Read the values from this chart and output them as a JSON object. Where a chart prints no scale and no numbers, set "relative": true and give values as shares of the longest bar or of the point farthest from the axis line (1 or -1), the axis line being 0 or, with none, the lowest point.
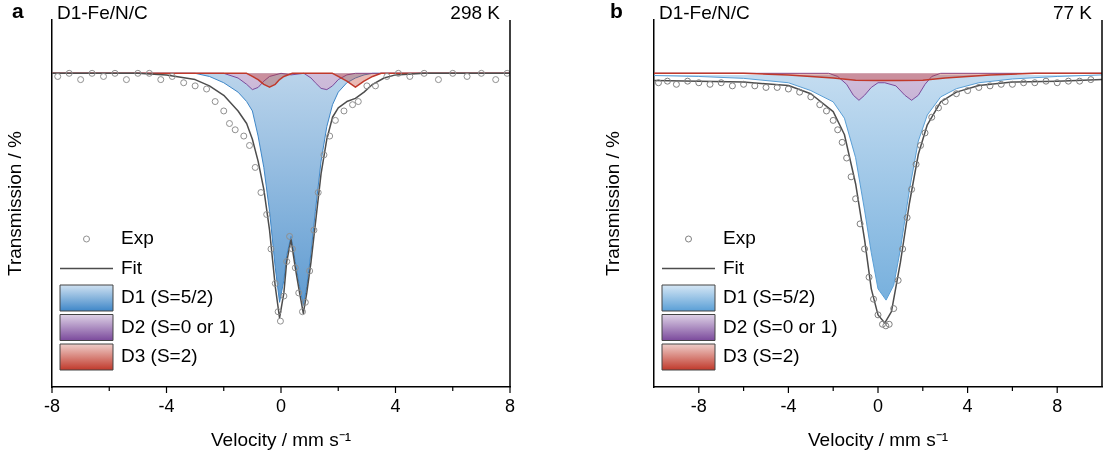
{
  "chart_data": [
    {
      "type": "line",
      "relative": true,
      "title": "D1-Fe/N/C",
      "subtitle": "298 K",
      "annotations": [
        "a"
      ],
      "xlabel": "Velocity / mm s⁻¹",
      "ylabel": "Transmission / %",
      "xlim": [
        -8,
        8
      ],
      "xticks": [
        -8,
        {
          "value": -6,
          "label": null
        },
        -4,
        {
          "value": -2,
          "label": null
        },
        0,
        {
          "value": 2,
          "label": null
        },
        4,
        {
          "value": 6,
          "label": null
        },
        8
      ],
      "legend": "bottom left",
      "series": [
        {
          "name": "Exp",
          "type": "scatter",
          "marker": "circle",
          "color": "#909090",
          "x": [
            -7.8,
            -7.4,
            -7.0,
            -6.6,
            -6.2,
            -5.8,
            -5.4,
            -5.0,
            -4.6,
            -4.2,
            -3.8,
            -3.4,
            -3.0,
            -2.6,
            -2.3,
            -2.0,
            -1.8,
            -1.6,
            -1.3,
            -1.1,
            -0.9,
            -0.7,
            -0.5,
            -0.35,
            -0.2,
            -0.1,
            -0.02,
            0.1,
            0.2,
            0.3,
            0.4,
            0.5,
            0.62,
            0.75,
            0.85,
            1.0,
            1.15,
            1.3,
            1.5,
            1.7,
            1.9,
            2.2,
            2.5,
            2.7,
            3.0,
            3.3,
            3.7,
            4.1,
            4.5,
            5.0,
            5.5,
            6.0,
            6.5,
            7.0,
            7.5,
            7.9
          ],
          "values": [
            0.99,
            1.0,
            0.98,
            1.0,
            0.99,
            1.0,
            0.98,
            1.0,
            1.0,
            0.98,
            0.99,
            0.97,
            0.96,
            0.95,
            0.91,
            0.88,
            0.84,
            0.82,
            0.8,
            0.77,
            0.7,
            0.62,
            0.55,
            0.44,
            0.33,
            0.24,
            0.21,
            0.29,
            0.4,
            0.48,
            0.44,
            0.38,
            0.3,
            0.24,
            0.27,
            0.37,
            0.5,
            0.62,
            0.74,
            0.8,
            0.85,
            0.88,
            0.9,
            0.91,
            0.96,
            0.96,
            0.99,
            1.0,
            0.99,
            1.0,
            0.98,
            1.0,
            0.99,
            1.0,
            0.98,
            1.0
          ]
        },
        {
          "name": "Fit",
          "type": "line",
          "color": "#4d4d4d",
          "x": [
            -8,
            -5,
            -4,
            -3,
            -2.5,
            -2,
            -1.5,
            -1.2,
            -1,
            -0.8,
            -0.6,
            -0.4,
            -0.2,
            -0.05,
            0.1,
            0.2,
            0.35,
            0.5,
            0.65,
            0.78,
            0.9,
            1.05,
            1.2,
            1.4,
            1.6,
            1.8,
            2,
            2.3,
            2.6,
            2.9,
            3.2,
            3.6,
            4,
            5,
            8
          ],
          "values": [
            1,
            1,
            0.995,
            0.98,
            0.96,
            0.93,
            0.88,
            0.84,
            0.79,
            0.72,
            0.63,
            0.5,
            0.32,
            0.22,
            0.3,
            0.4,
            0.47,
            0.38,
            0.3,
            0.235,
            0.3,
            0.4,
            0.52,
            0.68,
            0.79,
            0.86,
            0.89,
            0.91,
            0.92,
            0.94,
            0.965,
            0.985,
            0.995,
            1,
            1
          ]
        },
        {
          "name": "D1 (S=5/2)",
          "type": "area",
          "color": "#3f87c8",
          "x": [
            -8,
            -5,
            -4,
            -3,
            -2.5,
            -2,
            -1.5,
            -1.2,
            -1,
            -0.8,
            -0.6,
            -0.4,
            -0.2,
            -0.05,
            0.1,
            0.2,
            0.35,
            0.5,
            0.65,
            0.78,
            0.9,
            1.05,
            1.2,
            1.4,
            1.6,
            1.8,
            2,
            2.3,
            2.6,
            2.9,
            3.2,
            3.6,
            4,
            5,
            8
          ],
          "values": [
            1,
            1,
            1,
            1,
            0.99,
            0.97,
            0.94,
            0.91,
            0.88,
            0.8,
            0.7,
            0.56,
            0.38,
            0.27,
            0.34,
            0.42,
            0.48,
            0.4,
            0.32,
            0.26,
            0.32,
            0.43,
            0.56,
            0.72,
            0.83,
            0.9,
            0.94,
            0.97,
            0.985,
            0.995,
            1,
            1,
            1,
            1,
            1
          ]
        },
        {
          "name": "D2 (S=0 or 1)",
          "type": "area",
          "color": "#7b4a9c",
          "x": [
            -8,
            -2,
            -1.5,
            -1.2,
            -1,
            -0.8,
            -0.6,
            -0.4,
            0,
            0.35,
            0.8,
            1.05,
            1.2,
            1.4,
            1.6,
            1.8,
            2,
            2.3,
            2.6,
            8
          ],
          "values": [
            1,
            1,
            0.985,
            0.965,
            0.948,
            0.955,
            0.975,
            0.99,
            1,
            0.995,
            1,
            0.985,
            0.97,
            0.952,
            0.948,
            0.96,
            0.98,
            0.995,
            1,
            1
          ]
        },
        {
          "name": "D3 (S=2)",
          "type": "area",
          "color": "#c0392b",
          "x": [
            -8,
            -1.2,
            -1,
            -0.8,
            -0.6,
            -0.4,
            -0.2,
            -0.05,
            0.1,
            0.4,
            1.8,
            2,
            2.3,
            2.6,
            2.9,
            3.2,
            3.5,
            8
          ],
          "values": [
            1,
            1,
            0.99,
            0.98,
            0.965,
            0.956,
            0.965,
            0.98,
            0.99,
            1,
            1,
            0.99,
            0.975,
            0.956,
            0.975,
            0.99,
            1,
            1
          ]
        }
      ]
    },
    {
      "type": "line",
      "relative": true,
      "title": "D1-Fe/N/C",
      "subtitle": "77 K",
      "annotations": [
        "b"
      ],
      "xlabel": "Velocity / mm s⁻¹",
      "ylabel": "Transmission / %",
      "xlim": [
        -10,
        10
      ],
      "xticks": [
        -8,
        {
          "value": -6,
          "label": null
        },
        -4,
        {
          "value": -2,
          "label": null
        },
        0,
        {
          "value": 2,
          "label": null
        },
        4,
        {
          "value": 6,
          "label": null
        },
        8
      ],
      "legend": "bottom left",
      "series": [
        {
          "name": "Exp",
          "type": "scatter",
          "marker": "circle",
          "color": "#808080",
          "x": [
            -9.8,
            -9.4,
            -9,
            -8.5,
            -8,
            -7.5,
            -7,
            -6.5,
            -6,
            -5.5,
            -5,
            -4.5,
            -4,
            -3.5,
            -3,
            -2.6,
            -2.3,
            -2,
            -1.8,
            -1.6,
            -1.4,
            -1.2,
            -1,
            -0.8,
            -0.6,
            -0.4,
            -0.2,
            0,
            0.2,
            0.35,
            0.5,
            0.7,
            0.9,
            1.1,
            1.3,
            1.5,
            1.7,
            1.9,
            2.1,
            2.4,
            2.7,
            3,
            3.5,
            4,
            4.5,
            5,
            5.5,
            6,
            6.5,
            7,
            7.5,
            8,
            8.5,
            9,
            9.5
          ],
          "values": [
            0.97,
            0.975,
            0.965,
            0.975,
            0.97,
            0.965,
            0.97,
            0.96,
            0.965,
            0.96,
            0.955,
            0.955,
            0.95,
            0.94,
            0.925,
            0.9,
            0.88,
            0.85,
            0.82,
            0.78,
            0.73,
            0.67,
            0.6,
            0.52,
            0.44,
            0.35,
            0.28,
            0.23,
            0.2,
            0.195,
            0.2,
            0.25,
            0.34,
            0.44,
            0.54,
            0.63,
            0.71,
            0.77,
            0.81,
            0.86,
            0.89,
            0.91,
            0.935,
            0.945,
            0.955,
            0.96,
            0.965,
            0.965,
            0.97,
            0.97,
            0.975,
            0.97,
            0.975,
            0.975,
            0.98
          ]
        },
        {
          "name": "Fit",
          "type": "line",
          "color": "#4d4d4d",
          "x": [
            -10,
            -8,
            -6,
            -4,
            -3,
            -2,
            -1.5,
            -1,
            -0.6,
            -0.3,
            0,
            0.3,
            0.6,
            1,
            1.4,
            1.8,
            2.2,
            2.8,
            3.5,
            4.5,
            6,
            8,
            10
          ],
          "values": [
            0.977,
            0.975,
            0.972,
            0.961,
            0.935,
            0.878,
            0.805,
            0.648,
            0.47,
            0.313,
            0.23,
            0.204,
            0.24,
            0.397,
            0.585,
            0.742,
            0.836,
            0.909,
            0.94,
            0.961,
            0.972,
            0.975,
            0.98
          ]
        },
        {
          "name": "D1 (S=5/2)",
          "type": "area",
          "color": "#5a9fd6",
          "x": [
            -10,
            -8,
            -6,
            -4,
            -3,
            -2,
            -1.5,
            -1,
            -0.6,
            -0.3,
            0,
            0.36,
            0.7,
            1,
            1.4,
            1.8,
            2.2,
            2.8,
            3.5,
            4.5,
            6,
            8,
            10
          ],
          "values": [
            0.993,
            0.99,
            0.984,
            0.97,
            0.945,
            0.909,
            0.857,
            0.731,
            0.564,
            0.428,
            0.313,
            0.277,
            0.324,
            0.439,
            0.627,
            0.784,
            0.867,
            0.925,
            0.951,
            0.97,
            0.982,
            0.99,
            0.995
          ]
        },
        {
          "name": "D2 (S=0 or 1)",
          "type": "area",
          "color": "#7b4a9c",
          "x": [
            -10,
            -2.2,
            -1.8,
            -1.4,
            -1.1,
            -0.85,
            -0.6,
            -0.3,
            0,
            0.3,
            0.8,
            1.2,
            1.5,
            1.8,
            2.1,
            2.4,
            2.8,
            10
          ],
          "values": [
            1,
            1,
            0.99,
            0.965,
            0.93,
            0.914,
            0.93,
            0.955,
            0.97,
            0.97,
            0.96,
            0.93,
            0.914,
            0.93,
            0.965,
            0.99,
            1,
            1
          ]
        },
        {
          "name": "D3 (S=2)",
          "type": "area",
          "color": "#c0392b",
          "x": [
            -10,
            -6,
            -4,
            -2,
            -1,
            0,
            1,
            2,
            3,
            5,
            7,
            10
          ],
          "values": [
            1,
            1,
            0.995,
            0.985,
            0.978,
            0.977,
            0.977,
            0.978,
            0.985,
            0.995,
            1,
            1
          ]
        }
      ]
    }
  ]
}
